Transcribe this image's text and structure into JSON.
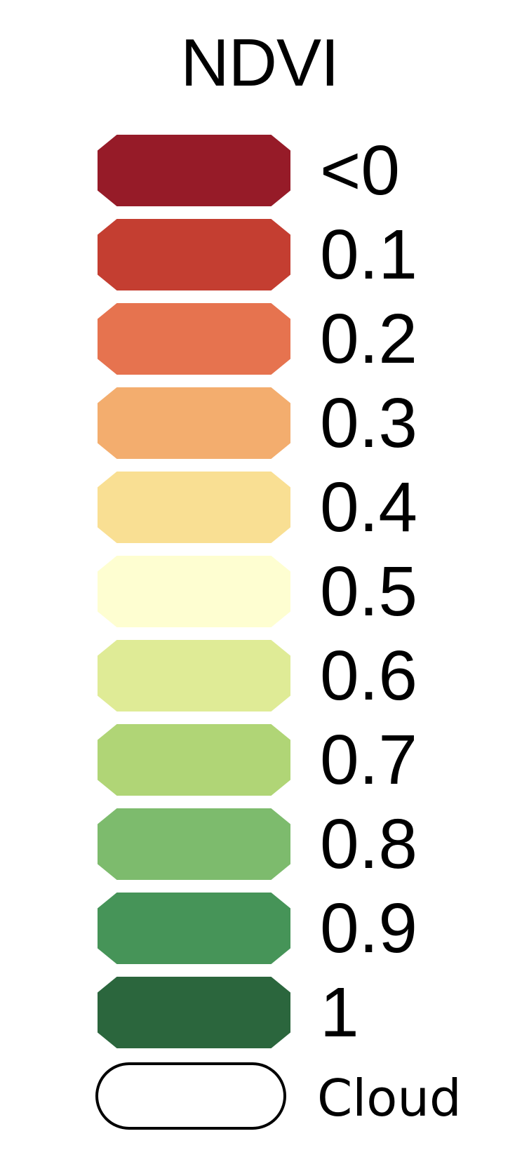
{
  "legend": {
    "title": "NDVI",
    "items": [
      {
        "label": "<0",
        "color": "#961b28"
      },
      {
        "label": "0.1",
        "color": "#c43e31"
      },
      {
        "label": "0.2",
        "color": "#e6734f"
      },
      {
        "label": "0.3",
        "color": "#f3ad6e"
      },
      {
        "label": "0.4",
        "color": "#f9df93"
      },
      {
        "label": "0.5",
        "color": "#fefed1"
      },
      {
        "label": "0.6",
        "color": "#dfeb96"
      },
      {
        "label": "0.7",
        "color": "#b0d576"
      },
      {
        "label": "0.8",
        "color": "#7dbb6d"
      },
      {
        "label": "0.9",
        "color": "#469458"
      },
      {
        "label": "1",
        "color": "#2b663d"
      }
    ],
    "cloud": {
      "label": "Cloud",
      "color": "#ffffff",
      "outline": "#000000"
    }
  }
}
